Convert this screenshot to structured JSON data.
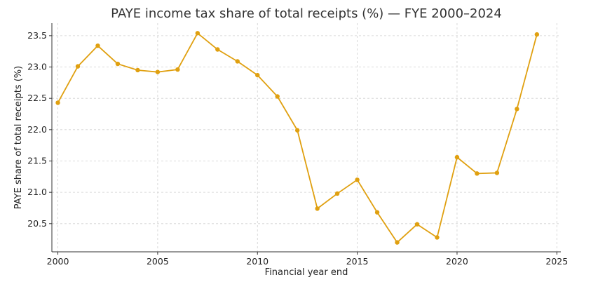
{
  "chart_data": {
    "type": "line",
    "title": "PAYE income tax share of total receipts (%) — FYE 2000–2024",
    "xlabel": "Financial year end",
    "ylabel": "PAYE share of total receipts (%)",
    "xlim": [
      1999.7,
      2025.2
    ],
    "ylim": [
      20.05,
      23.7
    ],
    "x_ticks": [
      2000,
      2005,
      2010,
      2015,
      2020,
      2025
    ],
    "y_ticks": [
      20.5,
      21.0,
      21.5,
      22.0,
      22.5,
      23.0,
      23.5
    ],
    "grid": true,
    "series": [
      {
        "color": "#e0a010",
        "x": [
          2000,
          2001,
          2002,
          2003,
          2004,
          2005,
          2006,
          2007,
          2008,
          2009,
          2010,
          2011,
          2012,
          2013,
          2014,
          2015,
          2016,
          2017,
          2018,
          2019,
          2020,
          2021,
          2022,
          2023,
          2024
        ],
        "values": [
          22.43,
          23.01,
          23.34,
          23.05,
          22.95,
          22.92,
          22.96,
          23.54,
          23.28,
          23.09,
          22.87,
          22.53,
          21.99,
          20.74,
          20.98,
          21.2,
          20.68,
          20.2,
          20.49,
          20.28,
          21.56,
          21.3,
          21.31,
          22.33,
          23.52
        ]
      }
    ]
  }
}
